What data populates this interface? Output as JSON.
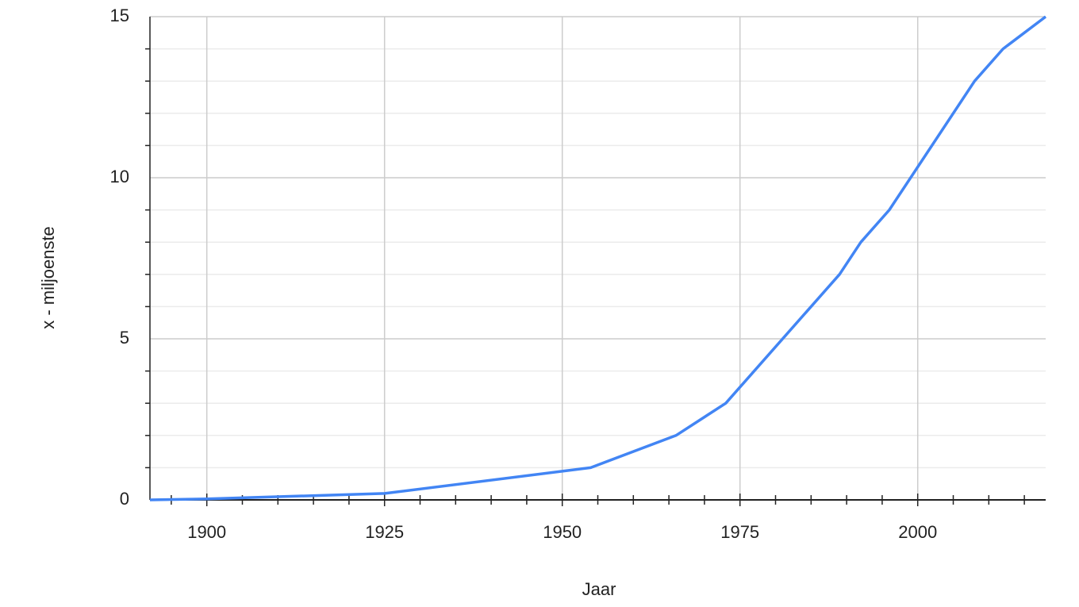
{
  "chart_data": {
    "type": "line",
    "x_label": "Jaar",
    "y_label": "x - miljoenste",
    "series": [
      {
        "name": "x - miljoenste",
        "color": "#4285f4",
        "x": [
          1892,
          1900,
          1925,
          1954,
          1966,
          1973,
          1989,
          1992,
          1996,
          2008,
          2012,
          2018
        ],
        "values": [
          0,
          0.03,
          0.2,
          1,
          2,
          3,
          7,
          8,
          9,
          13,
          14,
          15
        ]
      }
    ],
    "xlim": [
      1892,
      2018
    ],
    "ylim": [
      0,
      15
    ],
    "xticks": [
      1900,
      1925,
      1950,
      1975,
      2000
    ],
    "xminorticks": [
      1895,
      1905,
      1910,
      1915,
      1920,
      1930,
      1935,
      1940,
      1945,
      1955,
      1960,
      1965,
      1970,
      1980,
      1985,
      1990,
      1995,
      2005,
      2010,
      2015
    ],
    "yticks": [
      0,
      5,
      10,
      15
    ],
    "yminorticks": [
      1,
      2,
      3,
      4,
      6,
      7,
      8,
      9,
      11,
      12,
      13,
      14
    ],
    "grid": true
  }
}
